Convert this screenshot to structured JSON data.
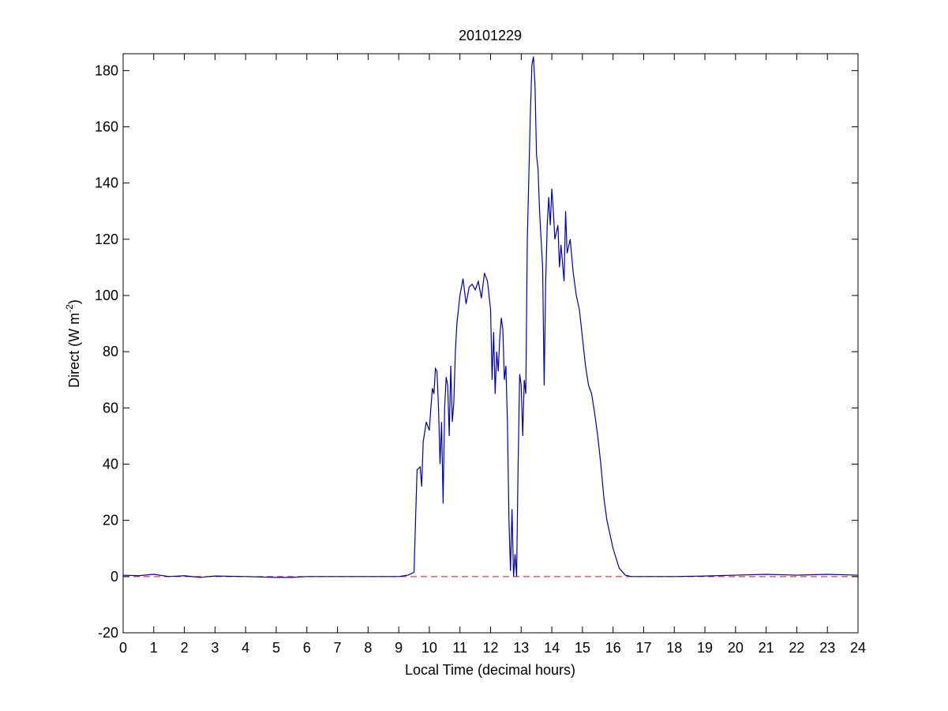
{
  "chart_data": {
    "type": "line",
    "title": "20101229",
    "xlabel": "Local Time (decimal hours)",
    "ylabel_parts": [
      "Direct (W m",
      "-2",
      ")"
    ],
    "xlim": [
      0,
      24
    ],
    "ylim": [
      -20,
      186
    ],
    "xticks": [
      0,
      1,
      2,
      3,
      4,
      5,
      6,
      7,
      8,
      9,
      10,
      11,
      12,
      13,
      14,
      15,
      16,
      17,
      18,
      19,
      20,
      21,
      22,
      23,
      24
    ],
    "yticks": [
      -20,
      0,
      20,
      40,
      60,
      80,
      100,
      120,
      140,
      160,
      180
    ],
    "reference_line": {
      "y": 0,
      "color": "#ff0000",
      "dashed": true
    },
    "series": [
      {
        "color": "#0000aa",
        "x": [
          0,
          0.5,
          1,
          1.5,
          2,
          2.5,
          3,
          4,
          5,
          5.5,
          6,
          7,
          8,
          9,
          9.3,
          9.5,
          9.55,
          9.6,
          9.7,
          9.75,
          9.8,
          9.9,
          10,
          10.05,
          10.1,
          10.15,
          10.2,
          10.25,
          10.3,
          10.35,
          10.4,
          10.45,
          10.5,
          10.55,
          10.6,
          10.65,
          10.7,
          10.75,
          10.8,
          10.85,
          10.9,
          11,
          11.1,
          11.2,
          11.3,
          11.4,
          11.5,
          11.6,
          11.7,
          11.8,
          11.9,
          12,
          12.05,
          12.1,
          12.15,
          12.2,
          12.25,
          12.3,
          12.35,
          12.4,
          12.45,
          12.5,
          12.55,
          12.6,
          12.65,
          12.7,
          12.75,
          12.8,
          12.85,
          12.9,
          12.95,
          13,
          13.05,
          13.1,
          13.15,
          13.2,
          13.3,
          13.35,
          13.4,
          13.45,
          13.5,
          13.55,
          13.6,
          13.7,
          13.75,
          13.8,
          13.85,
          13.9,
          13.95,
          14,
          14.05,
          14.1,
          14.2,
          14.25,
          14.3,
          14.4,
          14.45,
          14.5,
          14.6,
          14.7,
          14.8,
          14.9,
          15,
          15.1,
          15.2,
          15.3,
          15.4,
          15.5,
          15.6,
          15.7,
          15.8,
          16,
          16.2,
          16.4,
          16.6,
          17,
          18,
          19,
          20,
          21,
          22,
          23,
          24
        ],
        "values": [
          0.5,
          0.3,
          0.8,
          0,
          0.3,
          -0.3,
          0.2,
          0,
          -0.3,
          -0.3,
          0,
          0,
          0,
          0,
          0.5,
          1.5,
          20,
          38,
          39,
          32,
          48,
          55,
          52,
          60,
          67,
          65,
          74,
          73,
          60,
          40,
          55,
          26,
          60,
          71,
          68,
          50,
          75,
          55,
          62,
          80,
          90,
          100,
          106,
          97,
          103,
          104,
          102,
          105,
          99,
          108,
          105,
          95,
          70,
          87,
          65,
          80,
          73,
          85,
          92,
          88,
          70,
          75,
          55,
          20,
          2,
          24,
          0,
          8,
          0,
          40,
          72,
          68,
          50,
          70,
          65,
          120,
          165,
          182,
          185,
          175,
          150,
          145,
          130,
          110,
          68,
          105,
          125,
          135,
          125,
          138,
          130,
          120,
          125,
          110,
          118,
          105,
          130,
          115,
          120,
          108,
          100,
          95,
          85,
          75,
          68,
          65,
          58,
          50,
          40,
          28,
          20,
          10,
          3,
          0.5,
          0,
          0,
          0,
          0.2,
          0.5,
          0.8,
          0.5,
          0.8,
          0.5
        ]
      }
    ]
  }
}
